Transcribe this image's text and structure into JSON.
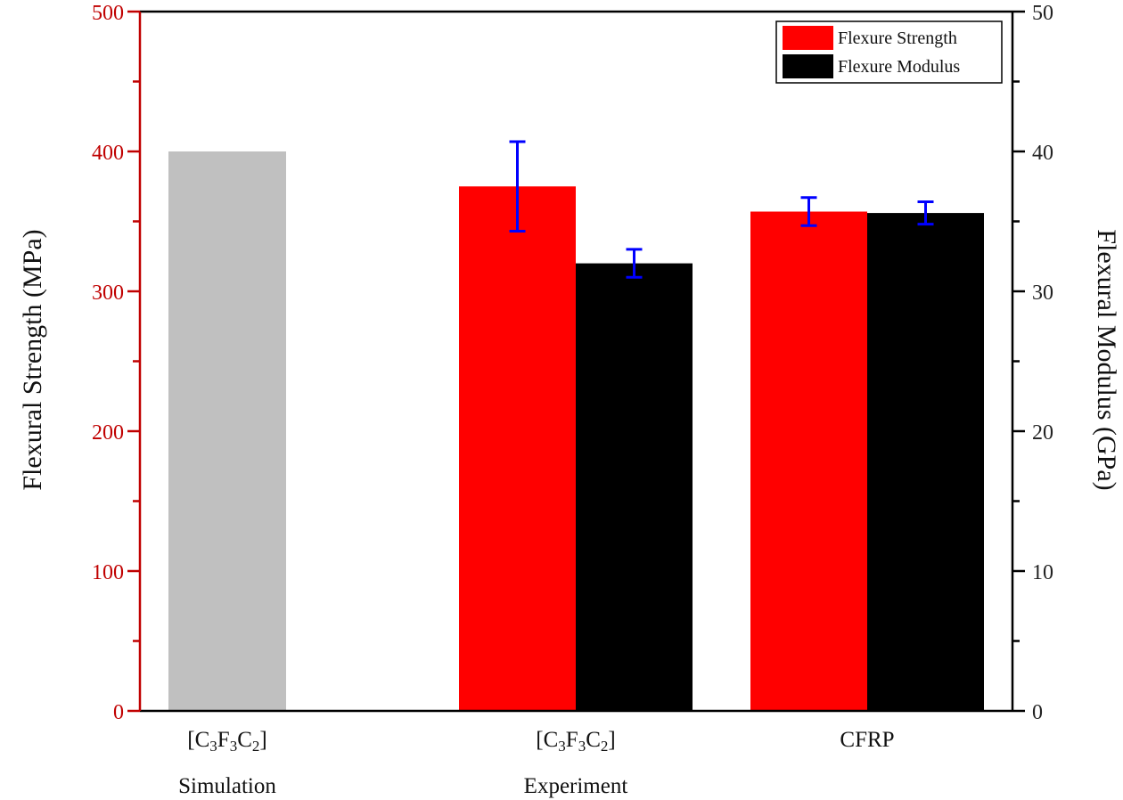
{
  "chart_data": {
    "type": "bar",
    "title": "",
    "xlabel": "",
    "ylabel": "Flexural Strength (MPa)",
    "y2label": "Flexural Modulus (GPa)",
    "ylim": [
      0,
      500
    ],
    "y2lim": [
      0,
      50
    ],
    "yticks": [
      "0",
      "100",
      "200",
      "300",
      "400",
      "500"
    ],
    "y2ticks": [
      "0",
      "10",
      "20",
      "30",
      "40",
      "50"
    ],
    "categories": [
      {
        "line1": "[C3F3C2]",
        "line1_parts": [
          [
            "[C",
            ""
          ],
          [
            "3",
            "sub"
          ],
          [
            "F",
            ""
          ],
          [
            "3",
            "sub"
          ],
          [
            "C",
            ""
          ],
          [
            "2",
            "sub"
          ],
          [
            "]",
            ""
          ]
        ],
        "line2": "Simulation"
      },
      {
        "line1": "[C3F3C2]",
        "line1_parts": [
          [
            "[C",
            ""
          ],
          [
            "3",
            "sub"
          ],
          [
            "F",
            ""
          ],
          [
            "3",
            "sub"
          ],
          [
            "C",
            ""
          ],
          [
            "2",
            "sub"
          ],
          [
            "]",
            ""
          ]
        ],
        "line2": "Experiment"
      },
      {
        "line1": "CFRP",
        "line1_parts": [
          [
            "CFRP",
            ""
          ]
        ],
        "line2": ""
      }
    ],
    "bars": [
      {
        "category": 0,
        "series": "Simulation",
        "axis": "left",
        "value": 400,
        "error": null,
        "color": "#c0c0c0"
      },
      {
        "category": 1,
        "series": "Flexure Strength",
        "axis": "left",
        "value": 375,
        "error": 32,
        "color": "#ff0000"
      },
      {
        "category": 1,
        "series": "Flexure Modulus",
        "axis": "right",
        "value": 32.0,
        "error": 1.0,
        "color": "#000000"
      },
      {
        "category": 2,
        "series": "Flexure Strength",
        "axis": "left",
        "value": 357,
        "error": 10,
        "color": "#ff0000"
      },
      {
        "category": 2,
        "series": "Flexure Modulus",
        "axis": "right",
        "value": 35.6,
        "error": 0.8,
        "color": "#000000"
      }
    ],
    "series": [
      {
        "name": "Flexure Strength",
        "color": "#ff0000",
        "values": [
          null,
          375,
          357
        ],
        "errors": [
          null,
          32,
          10
        ]
      },
      {
        "name": "Flexure Modulus",
        "color": "#000000",
        "values": [
          null,
          32.0,
          35.6
        ],
        "errors": [
          null,
          1.0,
          0.8
        ]
      }
    ],
    "legend": {
      "position": "top-right",
      "entries": [
        {
          "label": "Flexure Strength",
          "color": "#ff0000"
        },
        {
          "label": "Flexure Modulus",
          "color": "#000000"
        }
      ]
    },
    "colors": {
      "left_axis": "#c00000",
      "right_axis": "#000000",
      "error_bar": "#0000ff"
    },
    "grid": false
  }
}
